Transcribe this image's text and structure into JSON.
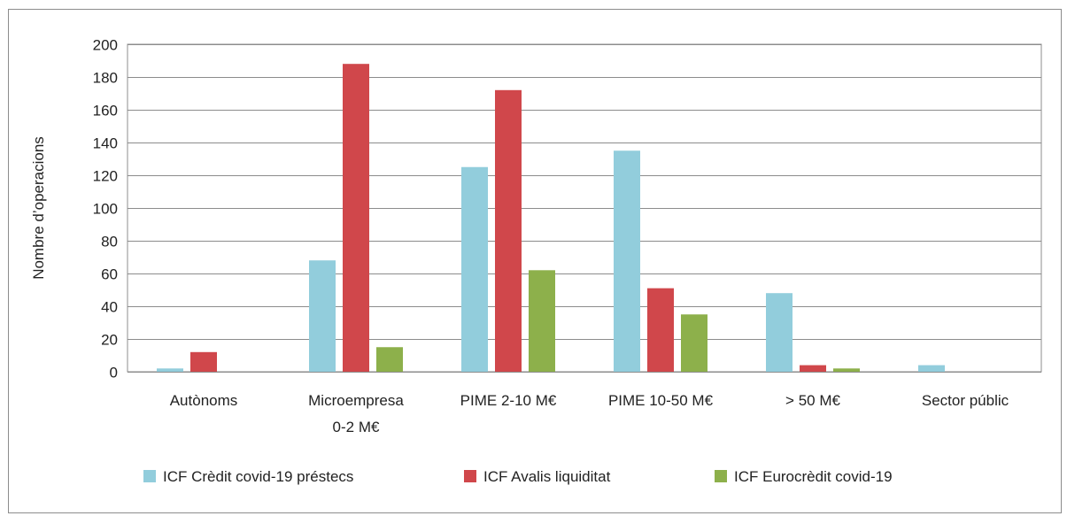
{
  "page": {
    "clipped_title": "",
    "legend_placement": "bottom"
  },
  "chart_data": {
    "type": "bar",
    "title": "",
    "xlabel": "",
    "ylabel": "Nombre d’operacions",
    "ylim": [
      0,
      200
    ],
    "ytick_step": 20,
    "grid": true,
    "legend_position": "bottom",
    "categories": [
      "Autònoms",
      "Microempresa\n0-2 M€",
      "PIME 2-10 M€",
      "PIME 10-50 M€",
      "> 50 M€",
      "Sector públic"
    ],
    "series": [
      {
        "name": "ICF Crèdit covid-19 préstecs",
        "color": "#92cddc",
        "values": [
          2,
          68,
          125,
          135,
          48,
          4
        ]
      },
      {
        "name": "ICF Avalis liquiditat",
        "color": "#d0474b",
        "values": [
          12,
          188,
          172,
          51,
          4,
          0
        ]
      },
      {
        "name": "ICF Eurocrèdit covid-19",
        "color": "#8db04b",
        "values": [
          0,
          15,
          62,
          35,
          2,
          0
        ]
      }
    ]
  }
}
